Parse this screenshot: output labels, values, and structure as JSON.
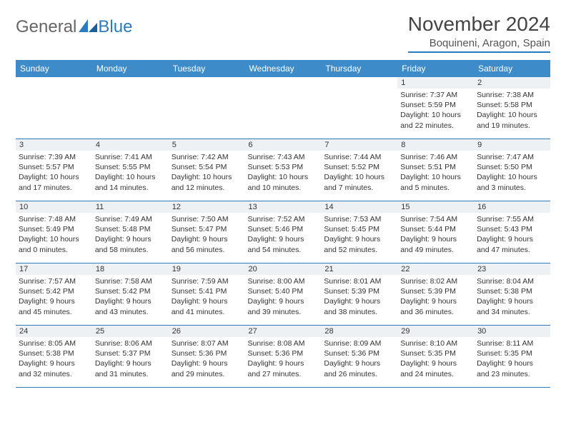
{
  "brand": {
    "part1": "General",
    "part2": "Blue"
  },
  "title": "November 2024",
  "location": "Boquineni, Aragon, Spain",
  "colors": {
    "header_bg": "#3d8bc9",
    "accent": "#2b7bbd",
    "daynum_bg": "#eef1f4",
    "text": "#333333"
  },
  "weekdays": [
    "Sunday",
    "Monday",
    "Tuesday",
    "Wednesday",
    "Thursday",
    "Friday",
    "Saturday"
  ],
  "weeks": [
    [
      null,
      null,
      null,
      null,
      null,
      {
        "n": "1",
        "sr": "7:37 AM",
        "ss": "5:59 PM",
        "dl": "10 hours and 22 minutes."
      },
      {
        "n": "2",
        "sr": "7:38 AM",
        "ss": "5:58 PM",
        "dl": "10 hours and 19 minutes."
      }
    ],
    [
      {
        "n": "3",
        "sr": "7:39 AM",
        "ss": "5:57 PM",
        "dl": "10 hours and 17 minutes."
      },
      {
        "n": "4",
        "sr": "7:41 AM",
        "ss": "5:55 PM",
        "dl": "10 hours and 14 minutes."
      },
      {
        "n": "5",
        "sr": "7:42 AM",
        "ss": "5:54 PM",
        "dl": "10 hours and 12 minutes."
      },
      {
        "n": "6",
        "sr": "7:43 AM",
        "ss": "5:53 PM",
        "dl": "10 hours and 10 minutes."
      },
      {
        "n": "7",
        "sr": "7:44 AM",
        "ss": "5:52 PM",
        "dl": "10 hours and 7 minutes."
      },
      {
        "n": "8",
        "sr": "7:46 AM",
        "ss": "5:51 PM",
        "dl": "10 hours and 5 minutes."
      },
      {
        "n": "9",
        "sr": "7:47 AM",
        "ss": "5:50 PM",
        "dl": "10 hours and 3 minutes."
      }
    ],
    [
      {
        "n": "10",
        "sr": "7:48 AM",
        "ss": "5:49 PM",
        "dl": "10 hours and 0 minutes."
      },
      {
        "n": "11",
        "sr": "7:49 AM",
        "ss": "5:48 PM",
        "dl": "9 hours and 58 minutes."
      },
      {
        "n": "12",
        "sr": "7:50 AM",
        "ss": "5:47 PM",
        "dl": "9 hours and 56 minutes."
      },
      {
        "n": "13",
        "sr": "7:52 AM",
        "ss": "5:46 PM",
        "dl": "9 hours and 54 minutes."
      },
      {
        "n": "14",
        "sr": "7:53 AM",
        "ss": "5:45 PM",
        "dl": "9 hours and 52 minutes."
      },
      {
        "n": "15",
        "sr": "7:54 AM",
        "ss": "5:44 PM",
        "dl": "9 hours and 49 minutes."
      },
      {
        "n": "16",
        "sr": "7:55 AM",
        "ss": "5:43 PM",
        "dl": "9 hours and 47 minutes."
      }
    ],
    [
      {
        "n": "17",
        "sr": "7:57 AM",
        "ss": "5:42 PM",
        "dl": "9 hours and 45 minutes."
      },
      {
        "n": "18",
        "sr": "7:58 AM",
        "ss": "5:42 PM",
        "dl": "9 hours and 43 minutes."
      },
      {
        "n": "19",
        "sr": "7:59 AM",
        "ss": "5:41 PM",
        "dl": "9 hours and 41 minutes."
      },
      {
        "n": "20",
        "sr": "8:00 AM",
        "ss": "5:40 PM",
        "dl": "9 hours and 39 minutes."
      },
      {
        "n": "21",
        "sr": "8:01 AM",
        "ss": "5:39 PM",
        "dl": "9 hours and 38 minutes."
      },
      {
        "n": "22",
        "sr": "8:02 AM",
        "ss": "5:39 PM",
        "dl": "9 hours and 36 minutes."
      },
      {
        "n": "23",
        "sr": "8:04 AM",
        "ss": "5:38 PM",
        "dl": "9 hours and 34 minutes."
      }
    ],
    [
      {
        "n": "24",
        "sr": "8:05 AM",
        "ss": "5:38 PM",
        "dl": "9 hours and 32 minutes."
      },
      {
        "n": "25",
        "sr": "8:06 AM",
        "ss": "5:37 PM",
        "dl": "9 hours and 31 minutes."
      },
      {
        "n": "26",
        "sr": "8:07 AM",
        "ss": "5:36 PM",
        "dl": "9 hours and 29 minutes."
      },
      {
        "n": "27",
        "sr": "8:08 AM",
        "ss": "5:36 PM",
        "dl": "9 hours and 27 minutes."
      },
      {
        "n": "28",
        "sr": "8:09 AM",
        "ss": "5:36 PM",
        "dl": "9 hours and 26 minutes."
      },
      {
        "n": "29",
        "sr": "8:10 AM",
        "ss": "5:35 PM",
        "dl": "9 hours and 24 minutes."
      },
      {
        "n": "30",
        "sr": "8:11 AM",
        "ss": "5:35 PM",
        "dl": "9 hours and 23 minutes."
      }
    ]
  ],
  "labels": {
    "sunrise": "Sunrise:",
    "sunset": "Sunset:",
    "daylight": "Daylight:"
  }
}
